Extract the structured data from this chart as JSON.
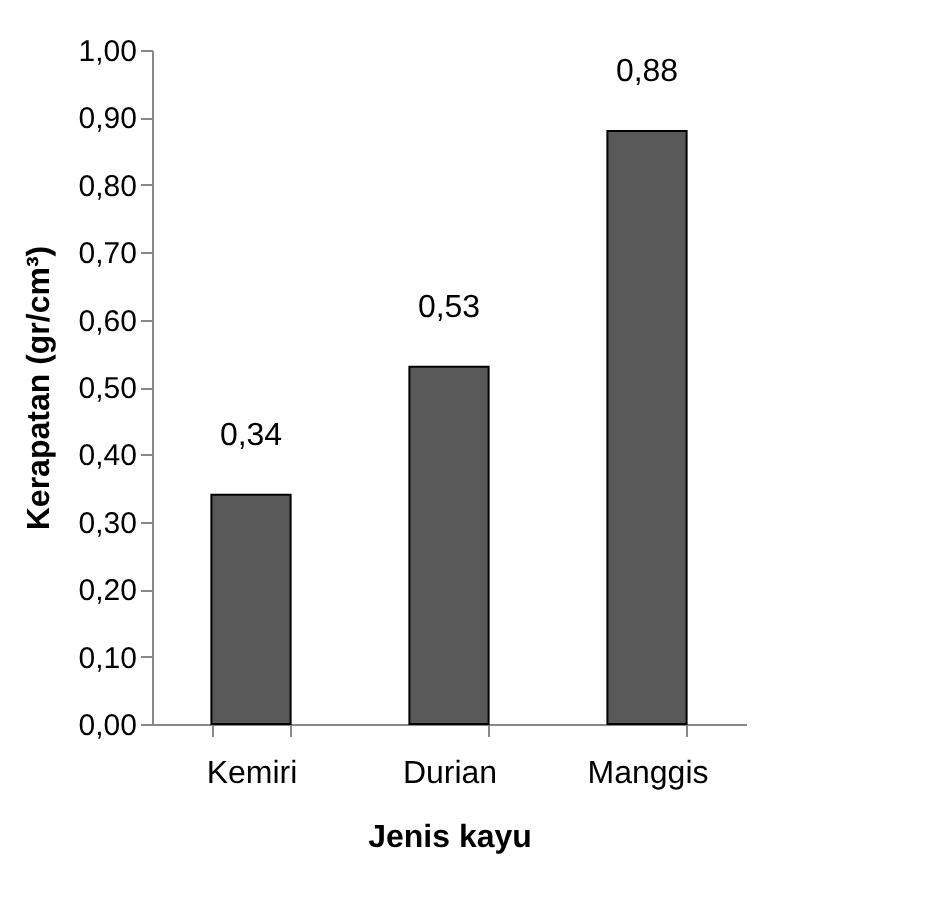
{
  "chart_data": {
    "type": "bar",
    "xlabel": "Jenis kayu",
    "ylabel": "Kerapatan (gr/cm³)",
    "categories": [
      "Kemiri",
      "Durian",
      "Manggis"
    ],
    "values": [
      0.34,
      0.53,
      0.88
    ],
    "value_labels": [
      "0,34",
      "0,53",
      "0,88"
    ],
    "color": "#595959",
    "ylim": [
      0,
      1
    ],
    "yticks": [
      {
        "value": 0,
        "label": "0,00"
      },
      {
        "value": 0.1,
        "label": "0,10"
      },
      {
        "value": 0.2,
        "label": "0,20"
      },
      {
        "value": 0.3,
        "label": "0,30"
      },
      {
        "value": 0.4,
        "label": "0,40"
      },
      {
        "value": 0.5,
        "label": "0,50"
      },
      {
        "value": 0.6,
        "label": "0,60"
      },
      {
        "value": 0.7,
        "label": "0,70"
      },
      {
        "value": 0.8,
        "label": "0,80"
      },
      {
        "value": 0.9,
        "label": "0,90"
      },
      {
        "value": 1,
        "label": "1,00"
      }
    ],
    "grid": false
  }
}
